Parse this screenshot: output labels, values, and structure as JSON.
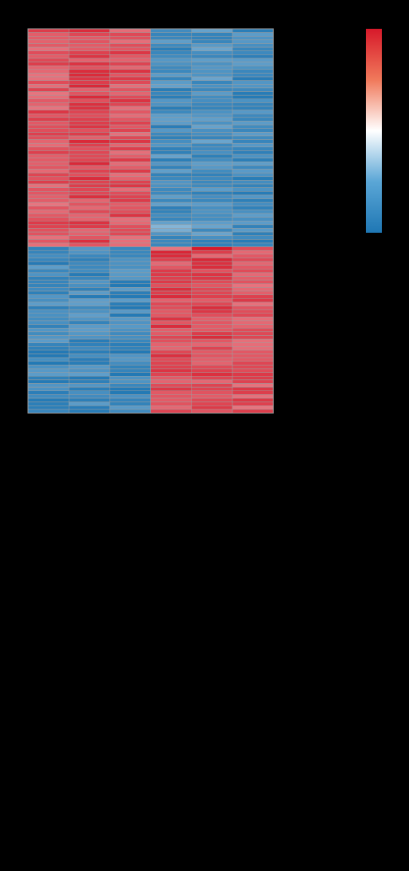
{
  "chart_data": {
    "type": "heatmap",
    "title": "",
    "xlabel": "",
    "ylabel": "",
    "columns": 6,
    "rows": 104,
    "color_scale": {
      "low": "#1f77b4",
      "mid": "#ffffff",
      "high": "#d7192a"
    },
    "grid": true,
    "grid_color": "#9e9e9e",
    "legend_position": "top-right",
    "row_clusters": [
      {
        "name": "",
        "row_count": 59,
        "column_levels": [
          0.74,
          0.8,
          0.76,
          -0.82,
          -0.8,
          -0.85
        ]
      },
      {
        "name": "",
        "row_count": 45,
        "column_levels": [
          -0.85,
          -0.84,
          -0.86,
          0.79,
          0.78,
          0.74
        ]
      }
    ],
    "highlight_cells": [
      {
        "row": 59,
        "col": 3,
        "value": 0.6
      },
      {
        "row": 59,
        "col": 4,
        "value": 1.0
      },
      {
        "row": 60,
        "col": 3,
        "value": 0.95
      },
      {
        "row": 61,
        "col": 3,
        "value": 0.92
      },
      {
        "row": 62,
        "col": 4,
        "value": 0.94
      },
      {
        "row": 63,
        "col": 4,
        "value": 0.9
      },
      {
        "row": 53,
        "col": 3,
        "value": -0.55
      },
      {
        "row": 54,
        "col": 3,
        "value": -0.6
      }
    ]
  }
}
